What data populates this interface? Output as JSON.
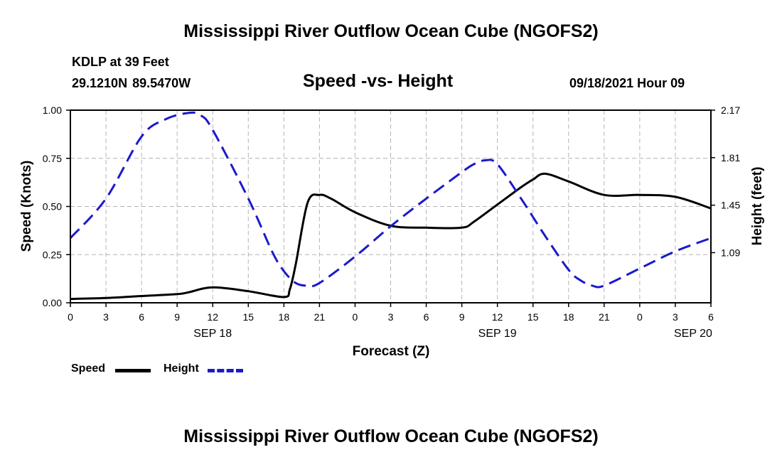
{
  "header": {
    "title_top": "Mississippi River Outflow Ocean Cube (NGOFS2)",
    "title_bottom": "Mississippi River Outflow Ocean Cube (NGOFS2)",
    "station": "KDLP at 39 Feet",
    "coordinates": "29.1210N  89.5470W",
    "plot_title": "Speed -vs- Height",
    "datetime": "09/18/2021 Hour 09"
  },
  "legend": {
    "speed_label": "Speed",
    "height_label": "Height"
  },
  "colors": {
    "speed": "#000000",
    "height": "#1a1acc",
    "grid": "#b4b4b4"
  },
  "chart_data": {
    "type": "line",
    "title": "Speed -vs- Height",
    "xlabel": "Forecast (Z)",
    "ylabel": "Speed (Knots)",
    "y2label": "Height (feet)",
    "xlim": [
      0,
      54
    ],
    "ylim": [
      0,
      1
    ],
    "y2lim": [
      0.71,
      2.17
    ],
    "x_ticks": [
      0,
      3,
      6,
      9,
      12,
      15,
      18,
      21,
      24,
      27,
      30,
      33,
      36,
      39,
      42,
      45,
      48,
      51,
      54
    ],
    "x_tick_labels": [
      "0",
      "3",
      "6",
      "9",
      "12",
      "15",
      "18",
      "21",
      "0",
      "3",
      "6",
      "9",
      "12",
      "15",
      "18",
      "21",
      "0",
      "3",
      "6"
    ],
    "date_labels": [
      {
        "x": 12,
        "label": "SEP 18"
      },
      {
        "x": 36,
        "label": "SEP 19"
      },
      {
        "x": 52.5,
        "label": "SEP 20"
      }
    ],
    "y_ticks": [
      0,
      0.25,
      0.5,
      0.75,
      1.0
    ],
    "y_tick_labels": [
      "0.00",
      "0.25",
      "0.50",
      "0.75",
      "1.00"
    ],
    "y2_ticks": [
      1.09,
      1.45,
      1.81,
      2.17
    ],
    "y2_tick_labels": [
      "1.09",
      "1.45",
      "1.81",
      "2.17"
    ],
    "grid": true,
    "legend_position": "bottom-left",
    "series": [
      {
        "name": "Speed",
        "axis": "left",
        "style": "solid",
        "x": [
          0,
          3,
          6,
          9,
          10,
          12,
          15,
          18,
          18.5,
          19,
          20,
          21,
          22,
          24,
          27,
          30,
          33,
          34,
          36,
          38,
          39,
          40,
          42,
          45,
          48,
          51,
          54
        ],
        "y": [
          0.02,
          0.025,
          0.035,
          0.045,
          0.055,
          0.08,
          0.06,
          0.03,
          0.07,
          0.2,
          0.52,
          0.56,
          0.54,
          0.47,
          0.4,
          0.39,
          0.39,
          0.42,
          0.51,
          0.6,
          0.64,
          0.67,
          0.63,
          0.56,
          0.56,
          0.55,
          0.49
        ]
      },
      {
        "name": "Height",
        "axis": "right",
        "style": "dashed",
        "x": [
          0,
          3,
          6,
          8,
          10,
          11,
          12,
          15,
          17,
          18,
          19,
          20,
          21,
          24,
          27,
          30,
          33,
          34,
          35,
          36,
          38,
          40,
          42,
          43,
          44,
          45,
          48,
          51,
          54
        ],
        "y": [
          1.2,
          1.5,
          1.97,
          2.1,
          2.15,
          2.13,
          2.02,
          1.5,
          1.1,
          0.95,
          0.86,
          0.84,
          0.86,
          1.06,
          1.29,
          1.5,
          1.7,
          1.76,
          1.79,
          1.76,
          1.5,
          1.22,
          0.96,
          0.88,
          0.84,
          0.84,
          0.97,
          1.1,
          1.2
        ]
      }
    ]
  }
}
